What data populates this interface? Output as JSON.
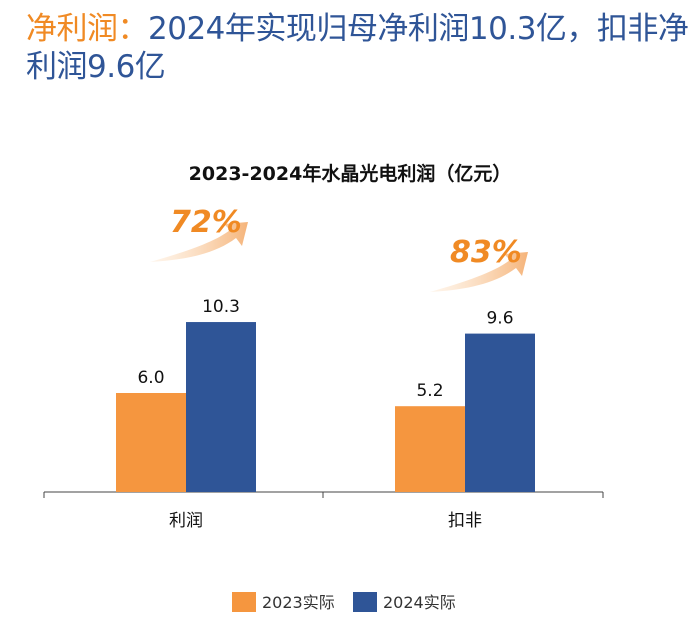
{
  "headline": {
    "lead": "净利润：",
    "rest": "2024年实现归母净利润10.3亿，扣非净利润9.6亿"
  },
  "chart_data": {
    "type": "bar",
    "title": "2023-2024年水晶光电利润（亿元）",
    "categories": [
      "利润",
      "扣非"
    ],
    "series": [
      {
        "name": "2023实际",
        "values": [
          6.0,
          5.2
        ],
        "labels": [
          "6.0",
          "5.2"
        ],
        "color": "#f5963f"
      },
      {
        "name": "2024实际",
        "values": [
          10.3,
          9.6
        ],
        "labels": [
          "10.3",
          "9.6"
        ],
        "color": "#2f5597"
      }
    ],
    "growth_labels": [
      "72%",
      "83%"
    ],
    "ylim": [
      0,
      12
    ],
    "legend": "bottom",
    "grid": false
  }
}
